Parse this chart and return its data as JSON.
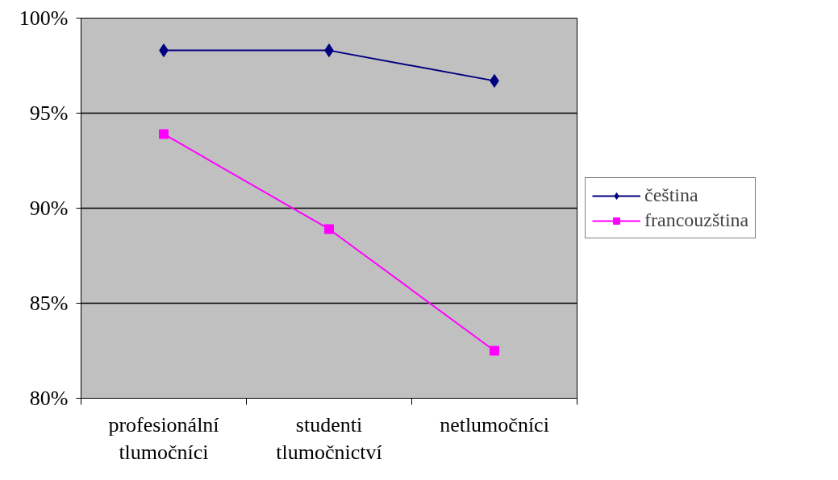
{
  "chart_data": {
    "type": "line",
    "categories": [
      "profesionální tlumočníci",
      "studenti tlumočnictví",
      "netlumočníci"
    ],
    "series": [
      {
        "name": "čeština",
        "color": "#000080",
        "marker": "diamond",
        "values": [
          98.3,
          98.3,
          96.7
        ]
      },
      {
        "name": "francouzština",
        "color": "#ff00ff",
        "marker": "square",
        "values": [
          93.9,
          88.9,
          82.5
        ]
      }
    ],
    "ylim": [
      80,
      100
    ],
    "yticks": [
      {
        "value": 80,
        "label": "80%"
      },
      {
        "value": 85,
        "label": "85%"
      },
      {
        "value": 90,
        "label": "90%"
      },
      {
        "value": 95,
        "label": "95%"
      },
      {
        "value": 100,
        "label": "100%"
      }
    ],
    "grid": "y",
    "legend": "right",
    "line_style": "solid"
  }
}
